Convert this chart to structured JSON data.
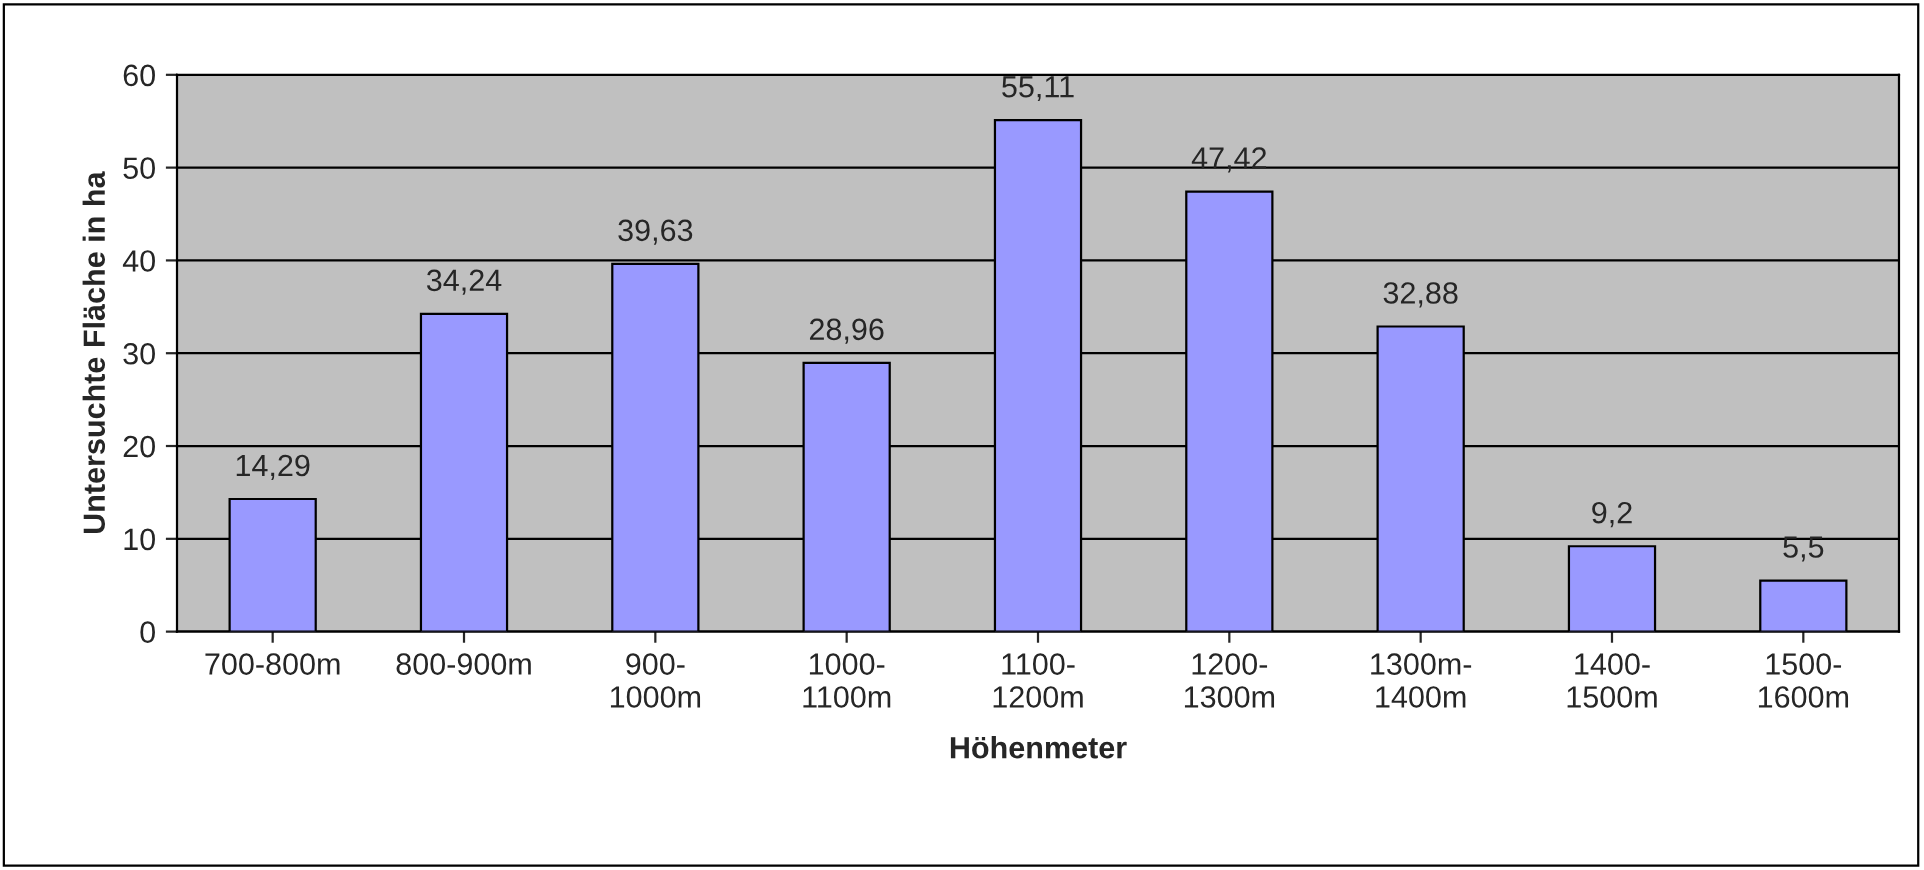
{
  "chart_data": {
    "type": "bar",
    "xlabel": "Höhenmeter",
    "ylabel": "Untersuchte Fläche in ha",
    "categories": [
      "700-800m",
      "800-900m",
      "900-\n1000m",
      "1000-\n1100m",
      "1100-\n1200m",
      "1200-\n1300m",
      "1300m-\n1400m",
      "1400-\n1500m",
      "1500-\n1600m"
    ],
    "values": [
      14.29,
      34.24,
      39.63,
      28.96,
      55.11,
      47.42,
      32.88,
      9.2,
      5.5
    ],
    "value_labels": [
      "14,29",
      "34,24",
      "39,63",
      "28,96",
      "55,11",
      "47,42",
      "32,88",
      "9,2",
      "5,5"
    ],
    "color": "#9999ff",
    "ylim": [
      0,
      60
    ],
    "yticks": [
      0,
      10,
      20,
      30,
      40,
      50,
      60
    ],
    "grid": "y",
    "legend": false
  }
}
